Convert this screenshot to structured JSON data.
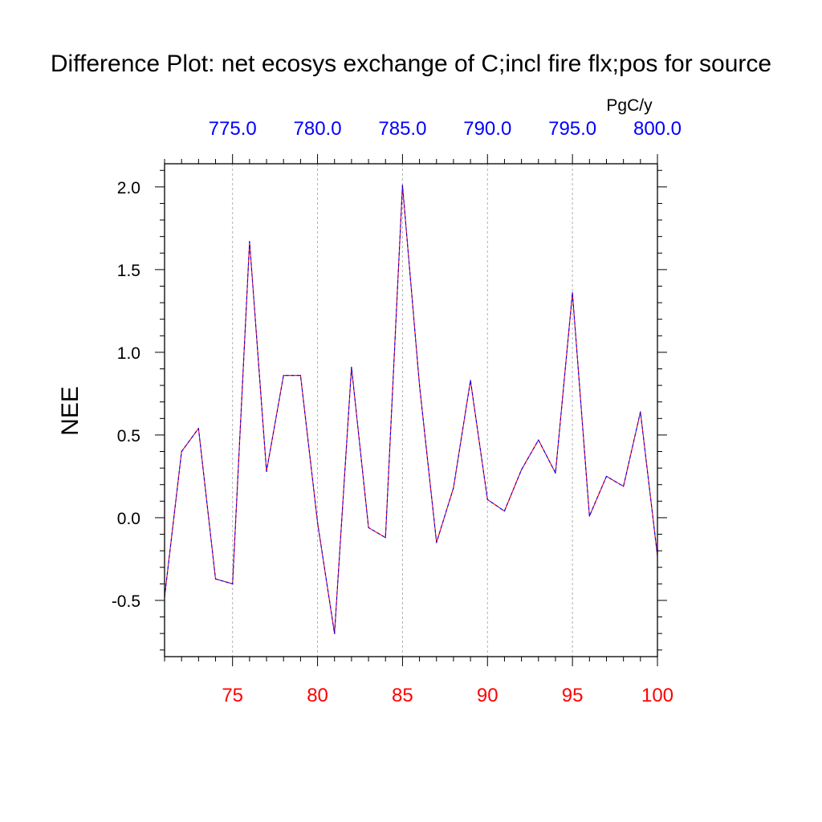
{
  "chart_data": {
    "type": "line",
    "title": "Difference Plot: net ecosys exchange of C;incl fire flx;pos for source",
    "ylabel": "NEE",
    "units": "PgC/y",
    "xlim": [
      71,
      100
    ],
    "ylim": [
      -0.84,
      2.14
    ],
    "y_ticks": [
      "-0.5",
      "0.0",
      "0.5",
      "1.0",
      "1.5",
      "2.0"
    ],
    "x_bottom_ticks": [
      "75",
      "80",
      "85",
      "90",
      "95",
      "100"
    ],
    "x_top_ticks": [
      "775.0",
      "780.0",
      "785.0",
      "790.0",
      "795.0",
      "800.0"
    ],
    "grid": "vertical-dashed",
    "colors": {
      "bottom_axis": "#ff0000",
      "top_axis": "#0000ff",
      "series_a": "#ff0000",
      "series_b": "#0000ff"
    },
    "x": [
      71,
      72,
      73,
      74,
      75,
      76,
      77,
      78,
      79,
      80,
      81,
      82,
      83,
      84,
      85,
      86,
      87,
      88,
      89,
      90,
      91,
      92,
      93,
      94,
      95,
      96,
      97,
      98,
      99,
      100
    ],
    "series": [
      {
        "values": [
          -0.48,
          0.4,
          0.54,
          -0.37,
          -0.4,
          1.67,
          0.28,
          0.86,
          0.86,
          -0.03,
          -0.7,
          0.91,
          -0.06,
          -0.12,
          2.01,
          0.8,
          -0.15,
          0.18,
          0.83,
          0.11,
          0.04,
          0.29,
          0.47,
          0.27,
          1.36,
          0.01,
          0.25,
          0.19,
          0.64,
          -0.23
        ]
      },
      {
        "values": [
          -0.48,
          0.4,
          0.54,
          -0.37,
          -0.4,
          1.67,
          0.28,
          0.86,
          0.86,
          -0.03,
          -0.7,
          0.91,
          -0.06,
          -0.12,
          2.01,
          0.8,
          -0.15,
          0.18,
          0.83,
          0.11,
          0.04,
          0.29,
          0.47,
          0.27,
          1.36,
          0.01,
          0.25,
          0.19,
          0.64,
          -0.23
        ]
      }
    ]
  }
}
